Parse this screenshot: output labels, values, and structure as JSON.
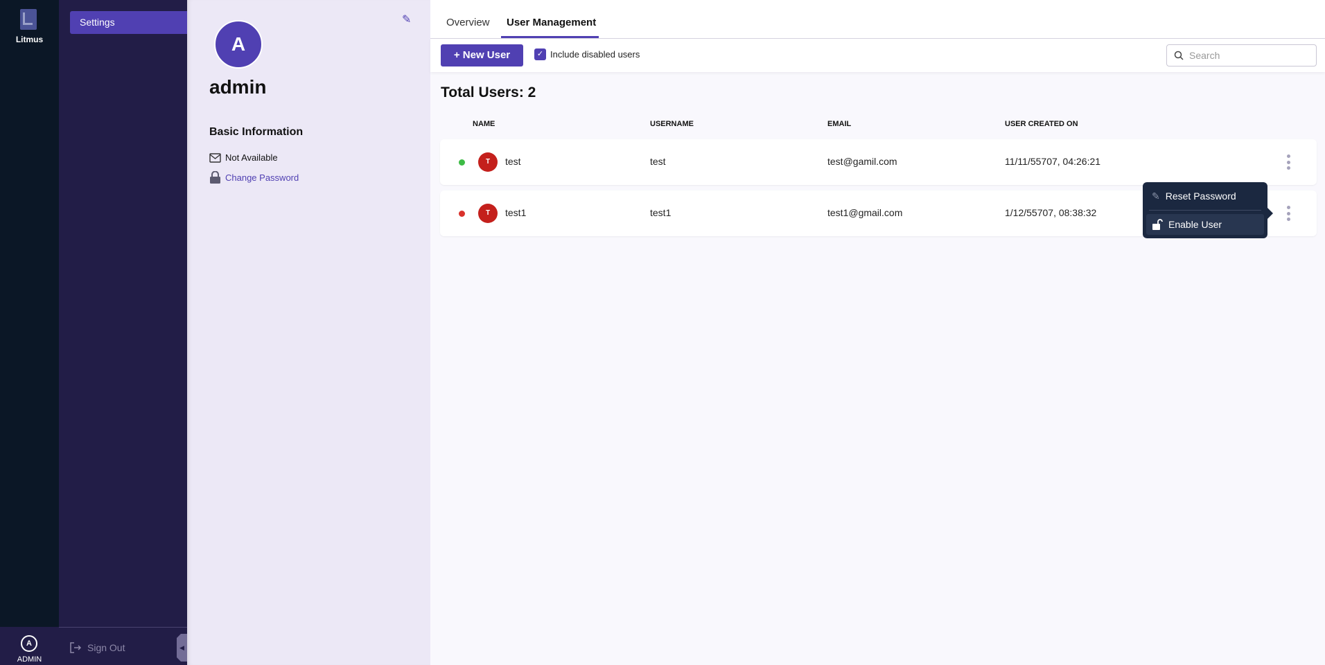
{
  "app": {
    "name": "Litmus",
    "user_initial": "A",
    "user_label": "ADMIN"
  },
  "sidebar": {
    "items": [
      {
        "label": "Settings",
        "active": true
      }
    ],
    "sign_out": "Sign Out"
  },
  "profile": {
    "initial": "A",
    "name": "admin",
    "section_title": "Basic Information",
    "email": "Not Available",
    "change_password": "Change Password"
  },
  "tabs": [
    {
      "label": "Overview"
    },
    {
      "label": "User Management",
      "active": true
    }
  ],
  "toolbar": {
    "new_user": "New User",
    "include_disabled_label": "Include disabled users",
    "include_disabled": true,
    "search_placeholder": "Search"
  },
  "table": {
    "total": "Total Users: 2",
    "headers": [
      "NAME",
      "USERNAME",
      "EMAIL",
      "USER CREATED ON"
    ],
    "rows": [
      {
        "initial": "T",
        "name": "test",
        "username": "test",
        "email": "test@gamil.com",
        "created": "11/11/55707, 04:26:21",
        "status_color": "#3dbb45"
      },
      {
        "initial": "T",
        "name": "test1",
        "username": "test1",
        "email": "test1@gmail.com",
        "created": "1/12/55707, 08:38:32",
        "status_color": "#d9322b"
      }
    ]
  },
  "row_menu": {
    "items": [
      {
        "label": "Reset Password",
        "icon": "pencil-icon"
      },
      {
        "label": "Enable User",
        "icon": "unlock-icon"
      }
    ]
  },
  "colors": {
    "accent": "#5040b2",
    "rail": "#0b1726",
    "sidebar": "#221d47"
  }
}
